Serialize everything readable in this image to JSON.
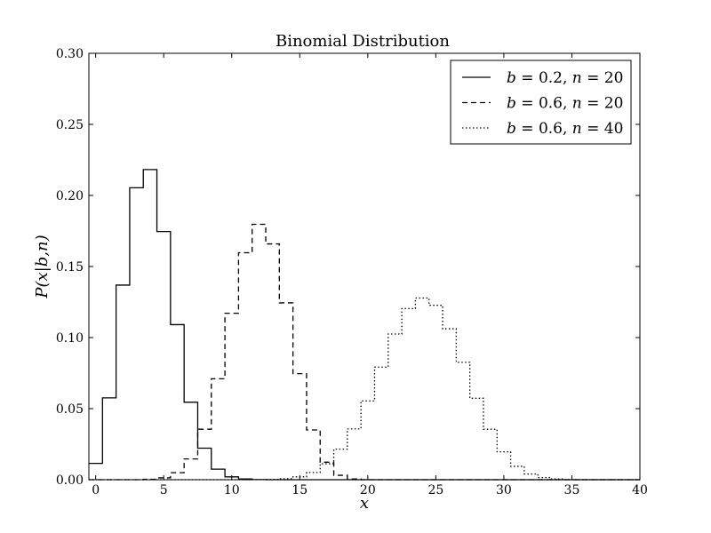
{
  "chart_data": {
    "type": "line",
    "drawstyle": "steps-mid",
    "title": "Binomial Distribution",
    "xlabel": "x",
    "ylabel": "P(x|b,n)",
    "xlim": [
      -0.5,
      40
    ],
    "ylim": [
      0,
      0.3
    ],
    "xticks": [
      0,
      5,
      10,
      15,
      20,
      25,
      30,
      35,
      40
    ],
    "xtick_labels": [
      "0",
      "5",
      "10",
      "15",
      "20",
      "25",
      "30",
      "35",
      "40"
    ],
    "yticks": [
      0,
      0.05,
      0.1,
      0.15,
      0.2,
      0.25,
      0.3
    ],
    "ytick_labels": [
      "0.00",
      "0.05",
      "0.10",
      "0.15",
      "0.20",
      "0.25",
      "0.30"
    ],
    "grid": false,
    "legend_location": "top-right",
    "series": [
      {
        "name": "b = 0.2,  n = 20",
        "b": 0.2,
        "n": 20,
        "line_style": "solid",
        "x": [
          0,
          1,
          2,
          3,
          4,
          5,
          6,
          7,
          8,
          9,
          10,
          11,
          12,
          13,
          14,
          15,
          16,
          17,
          18,
          19,
          20,
          21,
          22,
          23,
          24,
          25,
          26,
          27,
          28,
          29,
          30,
          31,
          32,
          33,
          34,
          35,
          36,
          37,
          38,
          39,
          40
        ],
        "values": [
          0.0115,
          0.0576,
          0.1369,
          0.2054,
          0.2182,
          0.1746,
          0.1091,
          0.0545,
          0.0222,
          0.0074,
          0.002,
          0.0005,
          0.0001,
          0,
          0,
          0,
          0,
          0,
          0,
          0,
          0,
          0,
          0,
          0,
          0,
          0,
          0,
          0,
          0,
          0,
          0,
          0,
          0,
          0,
          0,
          0,
          0,
          0,
          0,
          0,
          0
        ]
      },
      {
        "name": "b = 0.6,  n = 20",
        "b": 0.6,
        "n": 20,
        "line_style": "dashed",
        "x": [
          0,
          1,
          2,
          3,
          4,
          5,
          6,
          7,
          8,
          9,
          10,
          11,
          12,
          13,
          14,
          15,
          16,
          17,
          18,
          19,
          20,
          21,
          22,
          23,
          24,
          25,
          26,
          27,
          28,
          29,
          30,
          31,
          32,
          33,
          34,
          35,
          36,
          37,
          38,
          39,
          40
        ],
        "values": [
          0,
          0,
          0,
          0,
          0.0003,
          0.0013,
          0.0049,
          0.0146,
          0.0355,
          0.071,
          0.1171,
          0.1597,
          0.1797,
          0.1659,
          0.1244,
          0.0746,
          0.035,
          0.0123,
          0.0031,
          0.0005,
          0,
          0,
          0,
          0,
          0,
          0,
          0,
          0,
          0,
          0,
          0,
          0,
          0,
          0,
          0,
          0,
          0,
          0,
          0,
          0,
          0
        ]
      },
      {
        "name": "b = 0.6,  n = 40",
        "b": 0.6,
        "n": 40,
        "line_style": "dotted",
        "x": [
          0,
          1,
          2,
          3,
          4,
          5,
          6,
          7,
          8,
          9,
          10,
          11,
          12,
          13,
          14,
          15,
          16,
          17,
          18,
          19,
          20,
          21,
          22,
          23,
          24,
          25,
          26,
          27,
          28,
          29,
          30,
          31,
          32,
          33,
          34,
          35,
          36,
          37,
          38,
          39,
          40
        ],
        "values": [
          0,
          0,
          0,
          0,
          0,
          0,
          0,
          0,
          0,
          0,
          0,
          0,
          0.0001,
          0.0002,
          0.0007,
          0.002,
          0.0051,
          0.0112,
          0.0215,
          0.0357,
          0.0554,
          0.0792,
          0.1025,
          0.1204,
          0.1278,
          0.1227,
          0.1062,
          0.0826,
          0.0573,
          0.0355,
          0.0196,
          0.0094,
          0.004,
          0.0015,
          0.0005,
          0.0001,
          0,
          0,
          0,
          0,
          0
        ]
      }
    ],
    "legend_labels": [
      {
        "b": "0.2",
        "n": "20"
      },
      {
        "b": "0.6",
        "n": "20"
      },
      {
        "b": "0.6",
        "n": "40"
      }
    ]
  }
}
